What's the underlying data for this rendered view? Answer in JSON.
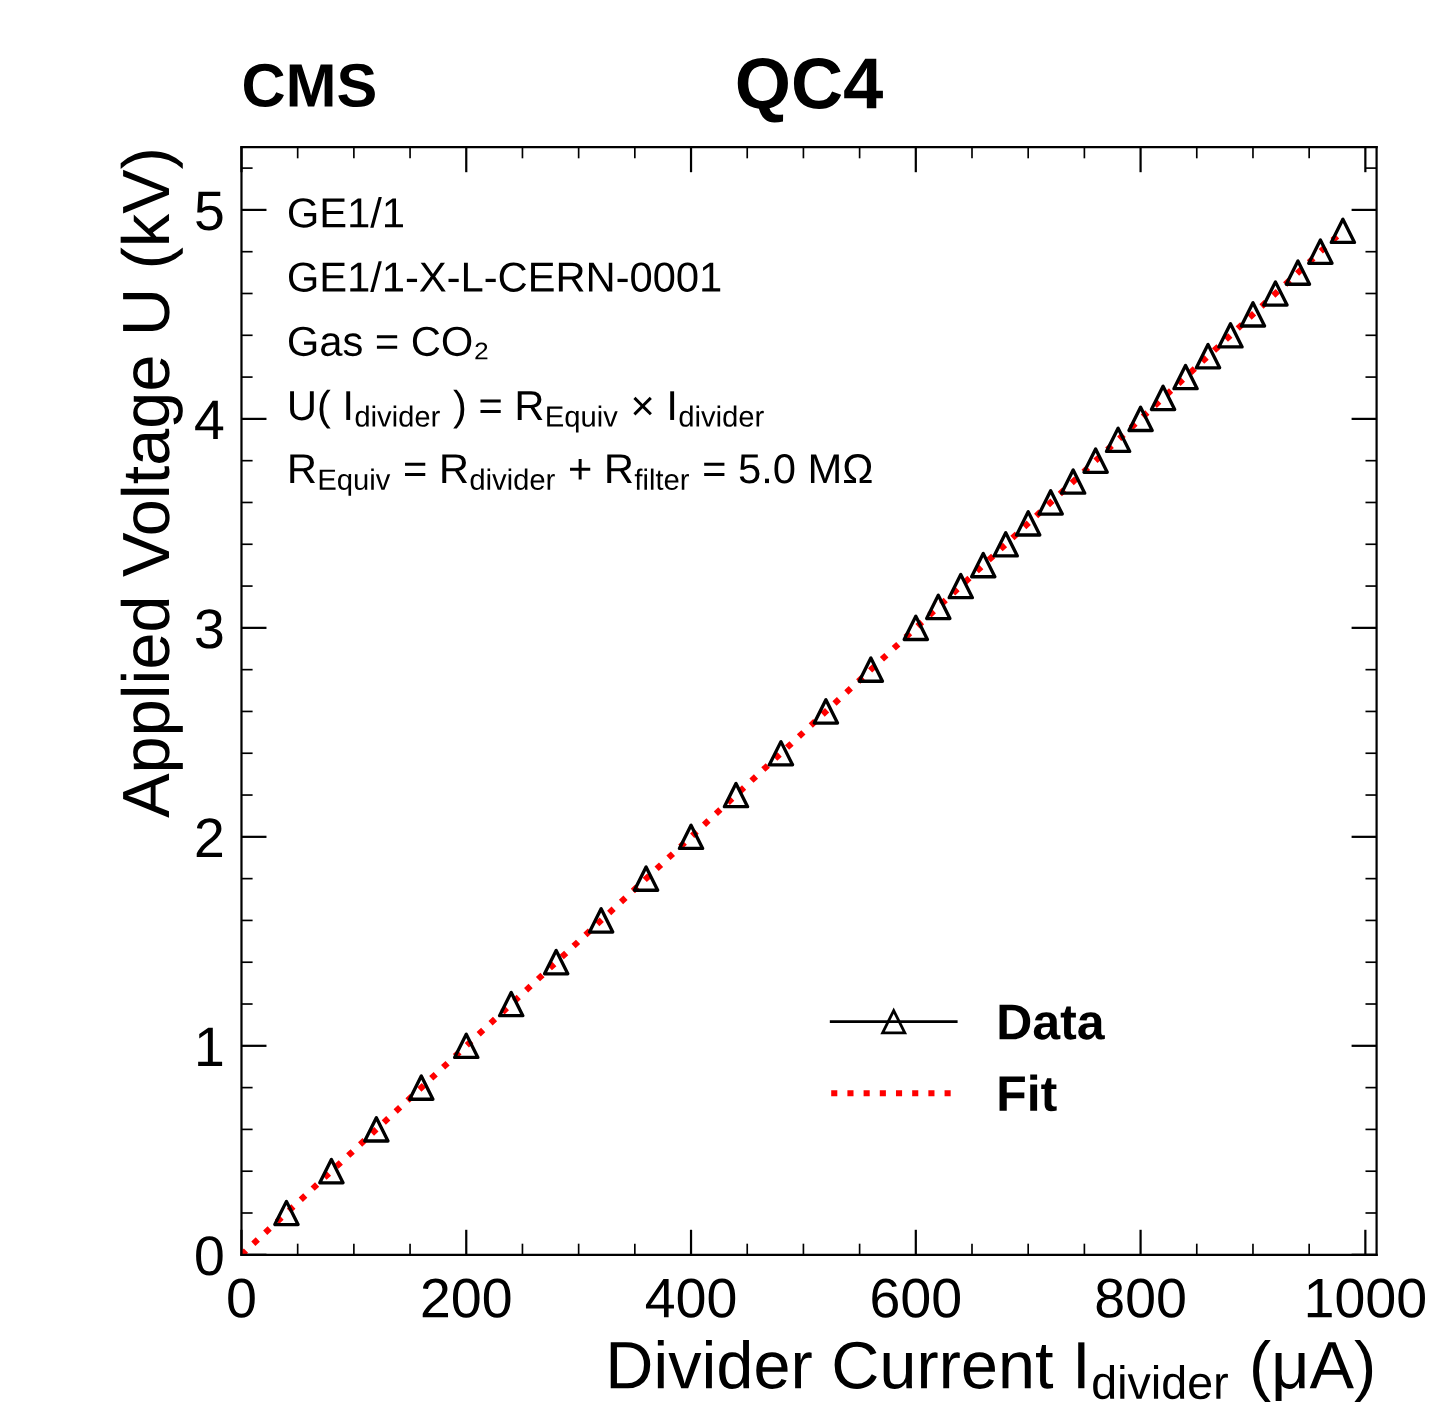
{
  "chart_data": {
    "type": "scatter",
    "title": "QC4",
    "xlabel": "Divider Current I$_{divider}$ (μA)",
    "ylabel": "Applied Voltage U (kV)",
    "x": [
      40,
      80,
      120,
      160,
      200,
      240,
      280,
      320,
      360,
      400,
      440,
      480,
      520,
      560,
      600,
      620,
      640,
      660,
      680,
      700,
      720,
      740,
      760,
      780,
      800,
      820,
      840,
      860,
      880,
      900,
      920,
      940,
      960,
      980
    ],
    "series": [
      {
        "name": "Data",
        "type": "scatter",
        "color": "#000000",
        "marker": "triangle",
        "values": [
          0.2,
          0.4,
          0.6,
          0.8,
          1.0,
          1.2,
          1.4,
          1.6,
          1.8,
          2.0,
          2.2,
          2.4,
          2.6,
          2.8,
          3.0,
          3.1,
          3.2,
          3.3,
          3.4,
          3.5,
          3.6,
          3.7,
          3.8,
          3.9,
          4.0,
          4.1,
          4.2,
          4.3,
          4.4,
          4.5,
          4.6,
          4.7,
          4.8,
          4.9
        ]
      },
      {
        "name": "Fit",
        "type": "line",
        "color": "#ff0000",
        "line_style": "dotted",
        "x": [
          0,
          980
        ],
        "values": [
          0,
          4.9
        ]
      }
    ],
    "xlim": [
      0,
      1010
    ],
    "ylim": [
      0,
      5.3
    ],
    "xticks": [
      0,
      200,
      400,
      600,
      800,
      1000
    ],
    "yticks": [
      0,
      1,
      2,
      3,
      4,
      5
    ],
    "grid": false,
    "legend": "bottom right",
    "annotations": [
      "CMS",
      "GE1/1",
      "GE1/1-X-L-CERN-0001",
      "Gas = CO₂",
      "U( I$_{divider}$ ) = R$_{Equiv}$ × I$_{divider}$",
      "R$_{Equiv}$ = R$_{divider}$ + R$_{filter}$ = 5.0 MΩ"
    ]
  }
}
